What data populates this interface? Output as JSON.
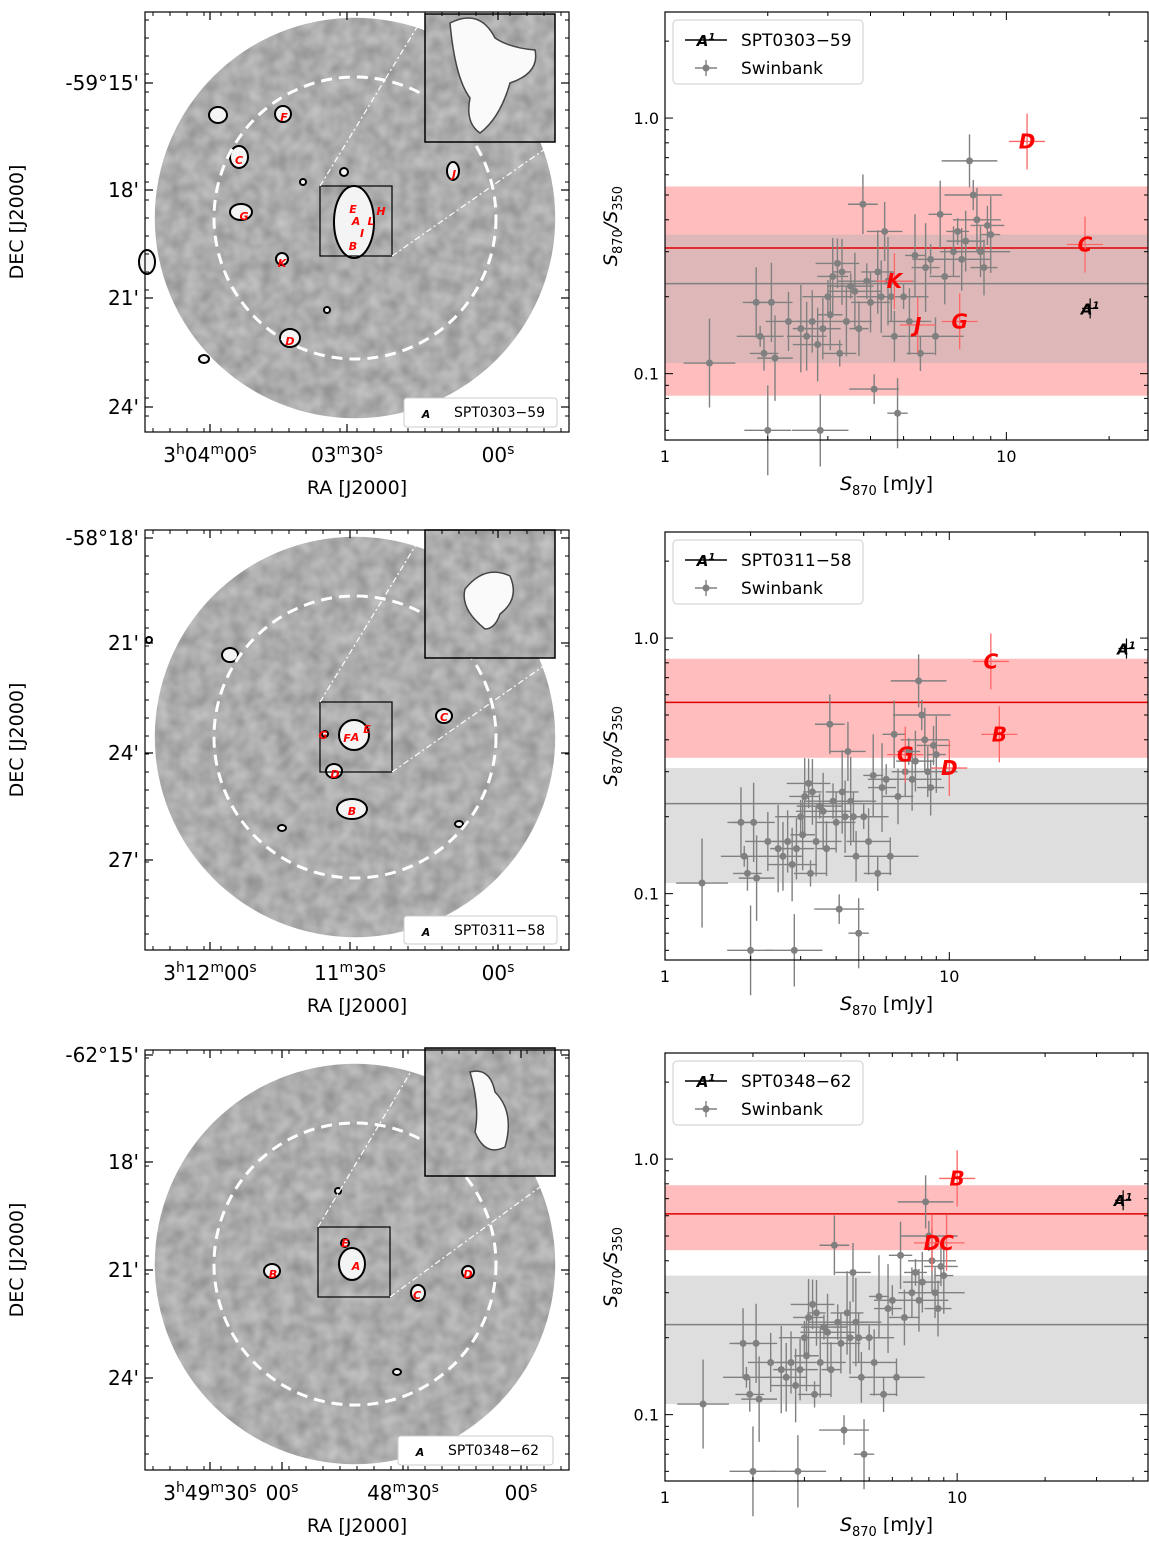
{
  "chart_data": [
    {
      "type": "image",
      "field": "SPT0303-59",
      "ylabel": "DEC [J2000]",
      "xlabel": "RA [J2000]",
      "dec_ticks": [
        "-59°15'",
        "18'",
        "21'",
        "24'"
      ],
      "ra_ticks": [
        "3h04m00s",
        "03m30s",
        "00s"
      ],
      "legend_marker": "A",
      "legend_label": "SPT0303−59",
      "sources": [
        {
          "id": "F",
          "color": "red"
        },
        {
          "id": "C",
          "color": "red"
        },
        {
          "id": "G",
          "color": "red"
        },
        {
          "id": "K",
          "color": "red"
        },
        {
          "id": "D",
          "color": "red"
        },
        {
          "id": "J",
          "color": "red"
        },
        {
          "id": "E",
          "color": "red"
        },
        {
          "id": "A",
          "color": "black"
        },
        {
          "id": "L",
          "color": "red"
        },
        {
          "id": "H",
          "color": "red"
        },
        {
          "id": "I",
          "color": "red"
        },
        {
          "id": "B",
          "color": "red"
        }
      ]
    },
    {
      "type": "scatter",
      "field": "SPT0303-59",
      "xlabel": "S870 [mJy]",
      "ylabel": "S870/S350",
      "xscale": "log",
      "yscale": "log",
      "xlim": [
        1,
        26
      ],
      "ylim": [
        0.055,
        2.6
      ],
      "x_ticks": [
        "1",
        "10"
      ],
      "y_ticks": [
        "0.1",
        "1.0"
      ],
      "legend": [
        "SPT0303−59",
        "Swinbank"
      ],
      "legend_placement": "top-left",
      "mean_field": 0.31,
      "band_field": [
        0.082,
        0.54
      ],
      "mean_swinbank": 0.225,
      "band_swinbank": [
        0.11,
        0.35
      ],
      "points": [
        {
          "label": "D",
          "x": 11.5,
          "y": 0.81,
          "color": "red"
        },
        {
          "label": "C",
          "x": 17.0,
          "y": 0.32,
          "color": "red"
        },
        {
          "label": "K",
          "x": 4.7,
          "y": 0.23,
          "color": "red"
        },
        {
          "label": "G",
          "x": 7.3,
          "y": 0.16,
          "color": "red"
        },
        {
          "label": "J",
          "x": 5.5,
          "y": 0.155,
          "color": "red"
        },
        {
          "label": "A1",
          "x": 17.6,
          "y": 0.18,
          "color": "black"
        }
      ]
    },
    {
      "type": "image",
      "field": "SPT0311-58",
      "ylabel": "DEC [J2000]",
      "xlabel": "RA [J2000]",
      "dec_ticks": [
        "-58°18'",
        "21'",
        "24'",
        "27'"
      ],
      "ra_ticks": [
        "3h12m00s",
        "11m30s",
        "00s"
      ],
      "legend_marker": "A",
      "legend_label": "SPT0311−58",
      "sources": [
        {
          "id": "G",
          "color": "red"
        },
        {
          "id": "F",
          "color": "red"
        },
        {
          "id": "A",
          "color": "black"
        },
        {
          "id": "E",
          "color": "red"
        },
        {
          "id": "C",
          "color": "red"
        },
        {
          "id": "D",
          "color": "red"
        },
        {
          "id": "B",
          "color": "red"
        }
      ]
    },
    {
      "type": "scatter",
      "field": "SPT0311-58",
      "xlabel": "S870 [mJy]",
      "ylabel": "S870/S350",
      "xscale": "log",
      "yscale": "log",
      "xlim": [
        1,
        50
      ],
      "ylim": [
        0.055,
        2.6
      ],
      "x_ticks": [
        "1",
        "10"
      ],
      "y_ticks": [
        "0.1",
        "1.0"
      ],
      "legend": [
        "SPT0311−58",
        "Swinbank"
      ],
      "legend_placement": "top-left",
      "mean_field": 0.56,
      "band_field": [
        0.34,
        0.83
      ],
      "mean_swinbank": 0.225,
      "band_swinbank": [
        0.11,
        0.31
      ],
      "points": [
        {
          "label": "C",
          "x": 14.0,
          "y": 0.81,
          "color": "red"
        },
        {
          "label": "B",
          "x": 15.0,
          "y": 0.42,
          "color": "red"
        },
        {
          "label": "G",
          "x": 7.0,
          "y": 0.35,
          "color": "red"
        },
        {
          "label": "D",
          "x": 10.0,
          "y": 0.31,
          "color": "red"
        },
        {
          "label": "A1",
          "x": 42.0,
          "y": 0.91,
          "color": "black"
        }
      ]
    },
    {
      "type": "image",
      "field": "SPT0348-62",
      "ylabel": "DEC [J2000]",
      "xlabel": "RA [J2000]",
      "dec_ticks": [
        "-62°15'",
        "18'",
        "21'",
        "24'"
      ],
      "ra_ticks": [
        "3h49m30s",
        "00s",
        "48m30s",
        "00s"
      ],
      "legend_marker": "A",
      "legend_label": "SPT0348−62",
      "sources": [
        {
          "id": "E",
          "color": "red"
        },
        {
          "id": "A",
          "color": "black"
        },
        {
          "id": "B",
          "color": "red"
        },
        {
          "id": "C",
          "color": "red"
        },
        {
          "id": "D",
          "color": "red"
        }
      ]
    },
    {
      "type": "scatter",
      "field": "SPT0348-62",
      "xlabel": "S870 [mJy]",
      "ylabel": "S870/S350",
      "xscale": "log",
      "yscale": "log",
      "xlim": [
        1,
        45
      ],
      "ylim": [
        0.055,
        2.6
      ],
      "x_ticks": [
        "1",
        "10"
      ],
      "y_ticks": [
        "0.1",
        "1.0"
      ],
      "legend": [
        "SPT0348−62",
        "Swinbank"
      ],
      "legend_placement": "top-left",
      "mean_field": 0.61,
      "band_field": [
        0.44,
        0.79
      ],
      "mean_swinbank": 0.225,
      "band_swinbank": [
        0.11,
        0.35
      ],
      "points": [
        {
          "label": "B",
          "x": 10.0,
          "y": 0.84,
          "color": "red"
        },
        {
          "label": "D",
          "x": 8.2,
          "y": 0.47,
          "color": "red"
        },
        {
          "label": "C",
          "x": 9.2,
          "y": 0.47,
          "color": "red"
        },
        {
          "label": "A1",
          "x": 37.0,
          "y": 0.69,
          "color": "black"
        }
      ]
    }
  ],
  "swinbank_points": [
    [
      1.35,
      0.11
    ],
    [
      1.85,
      0.19
    ],
    [
      1.9,
      0.14
    ],
    [
      1.95,
      0.12
    ],
    [
      2.0,
      0.06
    ],
    [
      2.05,
      0.19
    ],
    [
      2.1,
      0.115
    ],
    [
      2.3,
      0.16
    ],
    [
      2.5,
      0.15
    ],
    [
      2.6,
      0.14
    ],
    [
      2.7,
      0.16
    ],
    [
      2.8,
      0.13
    ],
    [
      2.85,
      0.06
    ],
    [
      2.9,
      0.15
    ],
    [
      3.0,
      0.2
    ],
    [
      3.05,
      0.17
    ],
    [
      3.1,
      0.24
    ],
    [
      3.2,
      0.27
    ],
    [
      3.25,
      0.12
    ],
    [
      3.3,
      0.25
    ],
    [
      3.4,
      0.16
    ],
    [
      3.5,
      0.22
    ],
    [
      3.6,
      0.21
    ],
    [
      3.7,
      0.15
    ],
    [
      3.8,
      0.46
    ],
    [
      3.9,
      0.23
    ],
    [
      4.0,
      0.19
    ],
    [
      4.1,
      0.087
    ],
    [
      4.2,
      0.25
    ],
    [
      4.3,
      0.2
    ],
    [
      4.4,
      0.36
    ],
    [
      4.5,
      0.23
    ],
    [
      4.6,
      0.2
    ],
    [
      4.7,
      0.14
    ],
    [
      4.8,
      0.07
    ],
    [
      5.0,
      0.2
    ],
    [
      5.2,
      0.16
    ],
    [
      5.4,
      0.29
    ],
    [
      5.6,
      0.12
    ],
    [
      5.8,
      0.26
    ],
    [
      6.0,
      0.28
    ],
    [
      6.2,
      0.14
    ],
    [
      6.4,
      0.42
    ],
    [
      6.6,
      0.24
    ],
    [
      7.0,
      0.3
    ],
    [
      7.2,
      0.36
    ],
    [
      7.4,
      0.28
    ],
    [
      7.6,
      0.33
    ],
    [
      7.8,
      0.68
    ],
    [
      8.0,
      0.5
    ],
    [
      8.2,
      0.4
    ],
    [
      8.4,
      0.3
    ],
    [
      8.6,
      0.26
    ],
    [
      8.8,
      0.38
    ],
    [
      9.0,
      0.35
    ]
  ]
}
